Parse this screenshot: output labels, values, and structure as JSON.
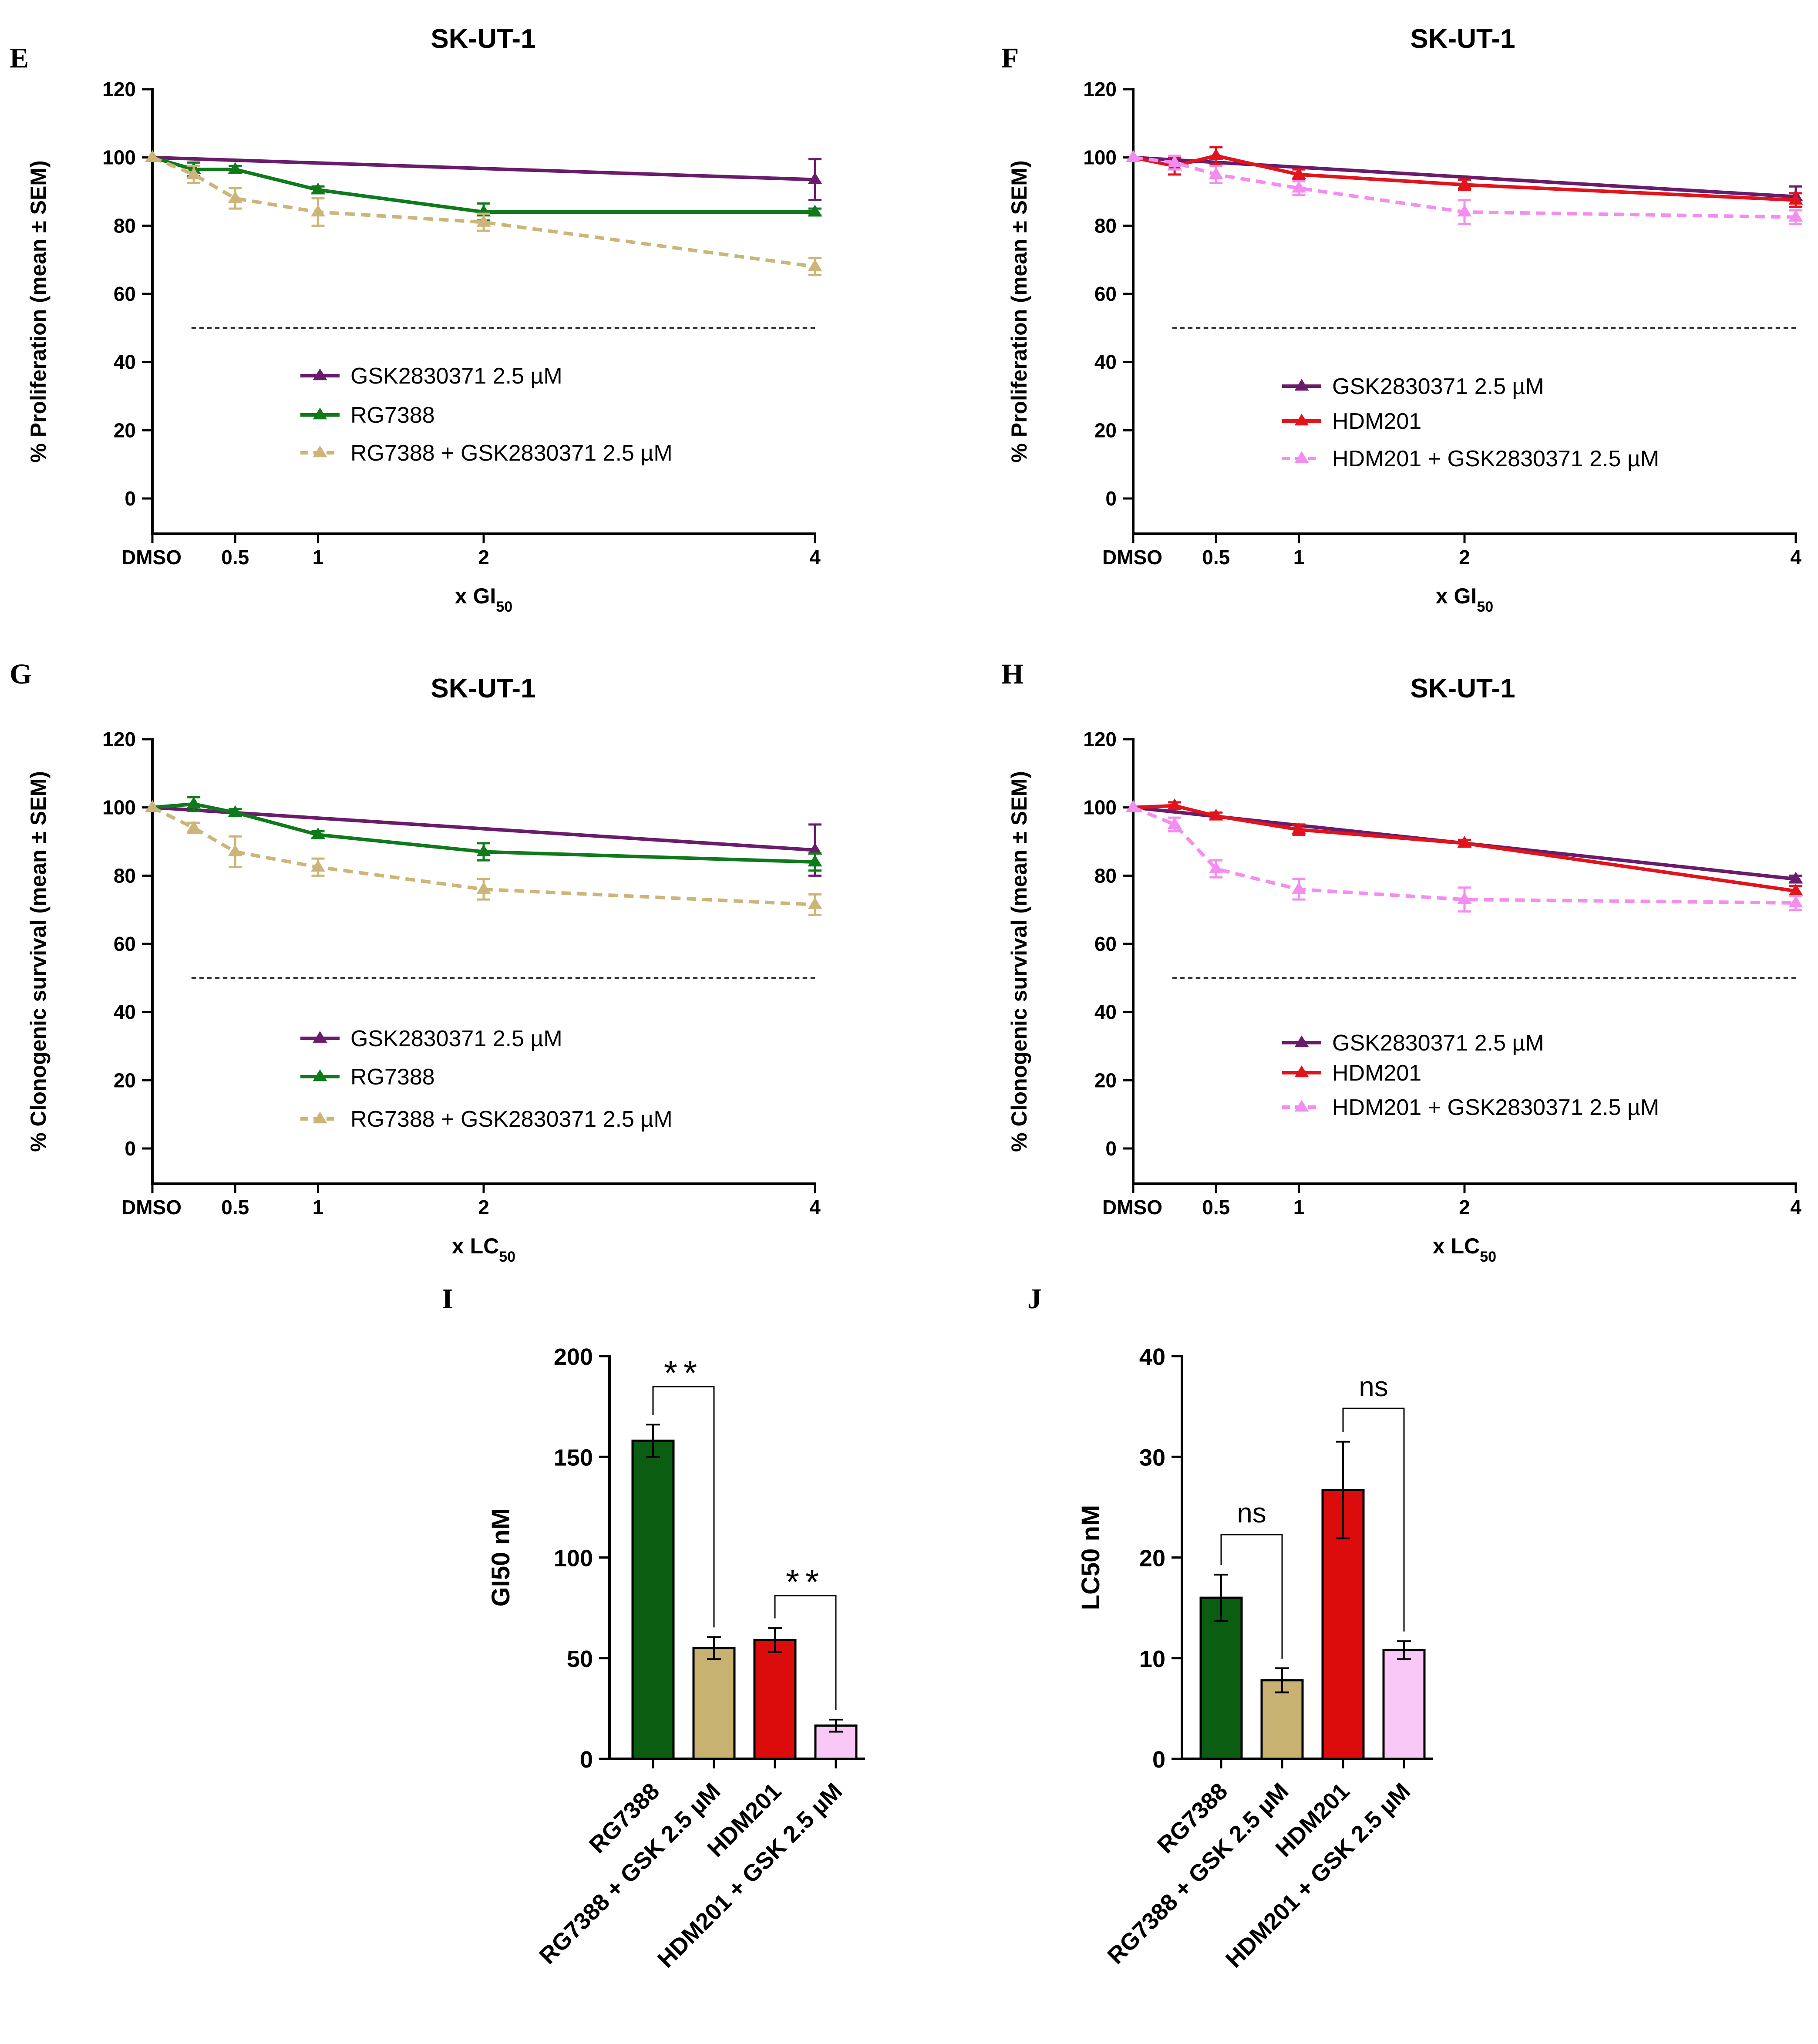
{
  "figure": {
    "panels": [
      "E",
      "F",
      "G",
      "H",
      "I",
      "J"
    ]
  },
  "colors": {
    "gsk": "#6a1b6b",
    "rg7388": "#0e7a1b",
    "rg7388_gsk": "#cdb57a",
    "hdm201": "#e3131b",
    "hdm201_gsk": "#f38ef0",
    "bar_rg7388": "#0b5d12",
    "bar_rg7388_gsk": "#c8b272",
    "bar_hdm201": "#dd0c0c",
    "bar_hdm201_gsk": "#fac8f7"
  },
  "chart_data": [
    {
      "panel": "E",
      "type": "line",
      "title": "SK-UT-1",
      "ylabel": "% Proliferation (mean ± SEM)",
      "xlabel_main": "x GI",
      "xlabel_sub": "50",
      "x_tick_labels": [
        "DMSO",
        "0.5",
        "1",
        "2",
        "4"
      ],
      "x_tick_values": [
        0,
        0.5,
        1,
        2,
        4
      ],
      "ylim": [
        -10,
        120
      ],
      "yticks": [
        0,
        20,
        40,
        60,
        80,
        100,
        120
      ],
      "reference_line": 50,
      "series": [
        {
          "name": "GSK2830371 2.5 µM",
          "color_key": "gsk",
          "dashed": false,
          "x": [
            0,
            4
          ],
          "y": [
            100,
            93.5
          ],
          "err": [
            0,
            6
          ]
        },
        {
          "name": "RG7388",
          "color_key": "rg7388",
          "dashed": false,
          "x": [
            0,
            0.25,
            0.5,
            1,
            2,
            4
          ],
          "y": [
            100,
            96.5,
            96.5,
            90.5,
            84,
            84
          ],
          "err": [
            0,
            2,
            1,
            1,
            2.5,
            1
          ]
        },
        {
          "name": "RG7388 + GSK2830371 2.5 µM",
          "color_key": "rg7388_gsk",
          "dashed": true,
          "x": [
            0,
            0.25,
            0.5,
            1,
            2,
            4
          ],
          "y": [
            100,
            95,
            88,
            84,
            81,
            68
          ],
          "err": [
            0,
            2.5,
            3,
            4,
            2.5,
            2.5
          ]
        }
      ]
    },
    {
      "panel": "F",
      "type": "line",
      "title": "SK-UT-1",
      "ylabel": "% Proliferation (mean ± SEM)",
      "xlabel_main": "x GI",
      "xlabel_sub": "50",
      "x_tick_labels": [
        "DMSO",
        "0.5",
        "1",
        "2",
        "4"
      ],
      "x_tick_values": [
        0,
        0.5,
        1,
        2,
        4
      ],
      "ylim": [
        -10,
        120
      ],
      "yticks": [
        0,
        20,
        40,
        60,
        80,
        100,
        120
      ],
      "reference_line": 50,
      "series": [
        {
          "name": "GSK2830371 2.5 µM",
          "color_key": "gsk",
          "dashed": false,
          "x": [
            0,
            4
          ],
          "y": [
            100,
            88.5
          ],
          "err": [
            0,
            3
          ]
        },
        {
          "name": "HDM201",
          "color_key": "hdm201",
          "dashed": false,
          "x": [
            0,
            0.25,
            0.5,
            1,
            2,
            4
          ],
          "y": [
            100,
            97.5,
            100.5,
            95,
            92,
            87.5
          ],
          "err": [
            0,
            2.5,
            2.5,
            1.5,
            1.5,
            2
          ]
        },
        {
          "name": "HDM201 + GSK2830371 2.5 µM",
          "color_key": "hdm201_gsk",
          "dashed": true,
          "x": [
            0,
            0.25,
            0.5,
            1,
            2,
            4
          ],
          "y": [
            100,
            98.5,
            95,
            91,
            84,
            82.5
          ],
          "err": [
            0,
            2,
            2.5,
            2,
            3.5,
            2
          ]
        }
      ]
    },
    {
      "panel": "G",
      "type": "line",
      "title": "SK-UT-1",
      "ylabel": "% Clonogenic survival (mean ± SEM)",
      "xlabel_main": "x LC",
      "xlabel_sub": "50",
      "x_tick_labels": [
        "DMSO",
        "0.5",
        "1",
        "2",
        "4"
      ],
      "x_tick_values": [
        0,
        0.5,
        1,
        2,
        4
      ],
      "ylim": [
        -10,
        120
      ],
      "yticks": [
        0,
        20,
        40,
        60,
        80,
        100,
        120
      ],
      "reference_line": 50,
      "series": [
        {
          "name": "GSK2830371 2.5 µM",
          "color_key": "gsk",
          "dashed": false,
          "x": [
            0,
            4
          ],
          "y": [
            100,
            87.5
          ],
          "err": [
            0,
            7.5
          ]
        },
        {
          "name": "RG7388",
          "color_key": "rg7388",
          "dashed": false,
          "x": [
            0,
            0.25,
            0.5,
            1,
            2,
            4
          ],
          "y": [
            100,
            101,
            98.5,
            92,
            87,
            84
          ],
          "err": [
            0,
            2,
            1,
            1,
            2.5,
            2.5
          ]
        },
        {
          "name": "RG7388 + GSK2830371 2.5 µM",
          "color_key": "rg7388_gsk",
          "dashed": true,
          "x": [
            0,
            0.25,
            0.5,
            1,
            2,
            4
          ],
          "y": [
            100,
            94,
            87,
            82.5,
            76,
            71.5
          ],
          "err": [
            0,
            1.5,
            4.5,
            2.5,
            3,
            3
          ]
        }
      ]
    },
    {
      "panel": "H",
      "type": "line",
      "title": "SK-UT-1",
      "ylabel": "% Clonogenic survival (mean ± SEM)",
      "xlabel_main": "x LC",
      "xlabel_sub": "50",
      "x_tick_labels": [
        "DMSO",
        "0.5",
        "1",
        "2",
        "4"
      ],
      "x_tick_values": [
        0,
        0.5,
        1,
        2,
        4
      ],
      "ylim": [
        -10,
        120
      ],
      "yticks": [
        0,
        20,
        40,
        60,
        80,
        100,
        120
      ],
      "reference_line": 50,
      "series": [
        {
          "name": "GSK2830371 2.5 µM",
          "color_key": "gsk",
          "dashed": false,
          "x": [
            0,
            4
          ],
          "y": [
            100,
            79
          ],
          "err": [
            0,
            1
          ]
        },
        {
          "name": "HDM201",
          "color_key": "hdm201",
          "dashed": false,
          "x": [
            0,
            0.25,
            0.5,
            1,
            2,
            4
          ],
          "y": [
            100,
            100.5,
            97.5,
            93.5,
            89.5,
            75.5
          ],
          "err": [
            0,
            1,
            1,
            1.5,
            1,
            1.5
          ]
        },
        {
          "name": "HDM201 + GSK2830371 2.5 µM",
          "color_key": "hdm201_gsk",
          "dashed": true,
          "x": [
            0,
            0.25,
            0.5,
            1,
            2,
            4
          ],
          "y": [
            100,
            95,
            82,
            76,
            73,
            72
          ],
          "err": [
            0,
            2,
            2.5,
            3,
            3.5,
            2
          ]
        }
      ]
    },
    {
      "panel": "I",
      "type": "bar",
      "ylabel": "GI50 nM",
      "categories": [
        "RG7388",
        "RG7388 + GSK 2.5 µM",
        "HDM201",
        "HDM201 + GSK 2.5  µM"
      ],
      "values": [
        158,
        55,
        59,
        16.5
      ],
      "errors": [
        8,
        5.5,
        6,
        3
      ],
      "color_keys": [
        "bar_rg7388",
        "bar_rg7388_gsk",
        "bar_hdm201",
        "bar_hdm201_gsk"
      ],
      "ylim": [
        0,
        200
      ],
      "yticks": [
        0,
        50,
        100,
        150,
        200
      ],
      "significance": [
        {
          "pair": [
            0,
            1
          ],
          "label": "**"
        },
        {
          "pair": [
            2,
            3
          ],
          "label": "**"
        }
      ]
    },
    {
      "panel": "J",
      "type": "bar",
      "ylabel": "LC50 nM",
      "categories": [
        "RG7388",
        "RG7388 + GSK 2.5 µM",
        "HDM201",
        "HDM201 + GSK 2.5  µM"
      ],
      "values": [
        16,
        7.8,
        26.7,
        10.8
      ],
      "errors": [
        2.3,
        1.2,
        4.8,
        0.9
      ],
      "color_keys": [
        "bar_rg7388",
        "bar_rg7388_gsk",
        "bar_hdm201",
        "bar_hdm201_gsk"
      ],
      "ylim": [
        0,
        40
      ],
      "yticks": [
        0,
        10,
        20,
        30,
        40
      ],
      "significance": [
        {
          "pair": [
            0,
            1
          ],
          "label": "ns"
        },
        {
          "pair": [
            2,
            3
          ],
          "label": "ns"
        }
      ]
    }
  ]
}
